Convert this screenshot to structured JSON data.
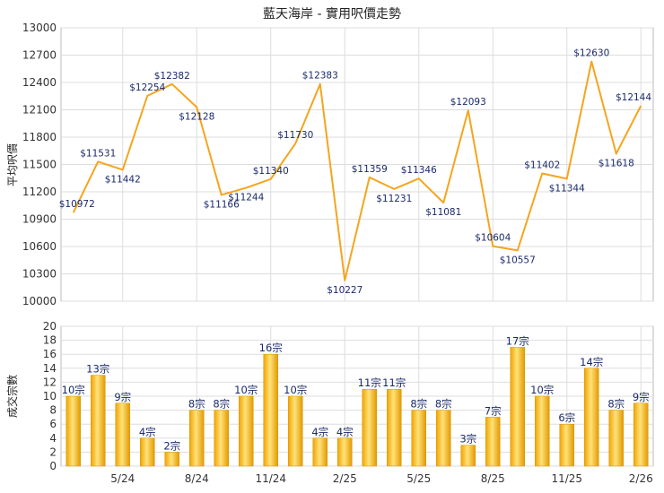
{
  "chart_data": [
    {
      "type": "line",
      "title": "藍天海岸 - 實用呎價走勢",
      "ylabel": "平均呎價",
      "ylim": [
        10000,
        13000
      ],
      "yticks": [
        10000,
        10300,
        10600,
        10900,
        11200,
        11500,
        11800,
        12100,
        12400,
        12700,
        13000
      ],
      "grid": true,
      "color": "#f5a51e",
      "values": [
        10972,
        11531,
        11442,
        12254,
        12382,
        12128,
        11166,
        11244,
        11340,
        11730,
        12383,
        10227,
        11359,
        11231,
        11346,
        11081,
        12093,
        10604,
        10557,
        11402,
        11344,
        12630,
        11618,
        12144
      ],
      "labels": [
        "$10972",
        "$11531",
        "$11442",
        "$12254",
        "$12382",
        "$12128",
        "$11166",
        "$11244",
        "$11340",
        "$11730",
        "$12383",
        "$10227",
        "$11359",
        "$11231",
        "$11346",
        "$11081",
        "$12093",
        "$10604",
        "$10557",
        "$11402",
        "$11344",
        "$12630",
        "$11618",
        "$12144"
      ]
    },
    {
      "type": "bar",
      "ylabel": "成交宗數",
      "ylim": [
        0,
        20
      ],
      "yticks": [
        0,
        2,
        4,
        6,
        8,
        10,
        12,
        14,
        16,
        18,
        20
      ],
      "grid": true,
      "color": "#f5b320",
      "values": [
        10,
        13,
        9,
        4,
        2,
        8,
        8,
        10,
        16,
        10,
        4,
        4,
        11,
        11,
        8,
        8,
        3,
        7,
        17,
        10,
        6,
        14,
        8,
        9
      ],
      "labels": [
        "10宗",
        "13宗",
        "9宗",
        "4宗",
        "2宗",
        "8宗",
        "8宗",
        "10宗",
        "16宗",
        "10宗",
        "4宗",
        "4宗",
        "11宗",
        "11宗",
        "8宗",
        "8宗",
        "3宗",
        "7宗",
        "17宗",
        "10宗",
        "6宗",
        "14宗",
        "8宗",
        "9宗"
      ],
      "xtick_labels": [
        "5/24",
        "8/24",
        "11/24",
        "2/25",
        "5/25",
        "8/25",
        "11/25",
        "2/26"
      ],
      "xtick_indices": [
        2,
        5,
        8,
        11,
        14,
        17,
        20,
        23
      ]
    }
  ]
}
